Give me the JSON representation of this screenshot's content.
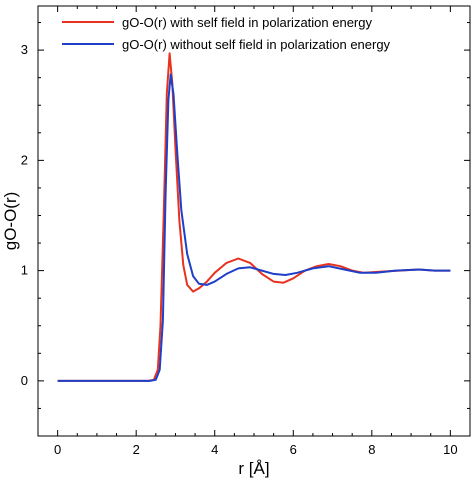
{
  "chart_data": {
    "type": "line",
    "xlabel": "r [Å]",
    "ylabel": "gO-O(r)",
    "xlim": [
      -0.5,
      10.5
    ],
    "ylim": [
      -0.5,
      3.4
    ],
    "xticks": [
      0,
      2,
      4,
      6,
      8,
      10
    ],
    "yticks": [
      0,
      1,
      2,
      3
    ],
    "grid": false,
    "legend_position": "top-right",
    "series": [
      {
        "name": "gO-O(r) with self field in polarization energy",
        "color": "#e8321e",
        "points": [
          [
            0,
            0
          ],
          [
            2.3,
            0
          ],
          [
            2.45,
            0.01
          ],
          [
            2.55,
            0.1
          ],
          [
            2.62,
            0.5
          ],
          [
            2.7,
            1.5
          ],
          [
            2.78,
            2.6
          ],
          [
            2.85,
            2.97
          ],
          [
            2.92,
            2.7
          ],
          [
            3.0,
            2.1
          ],
          [
            3.1,
            1.45
          ],
          [
            3.2,
            1.05
          ],
          [
            3.3,
            0.87
          ],
          [
            3.45,
            0.81
          ],
          [
            3.6,
            0.84
          ],
          [
            3.8,
            0.9
          ],
          [
            4.0,
            0.98
          ],
          [
            4.3,
            1.07
          ],
          [
            4.6,
            1.11
          ],
          [
            4.9,
            1.07
          ],
          [
            5.2,
            0.97
          ],
          [
            5.5,
            0.9
          ],
          [
            5.75,
            0.89
          ],
          [
            6.0,
            0.93
          ],
          [
            6.3,
            1.0
          ],
          [
            6.6,
            1.04
          ],
          [
            6.9,
            1.06
          ],
          [
            7.2,
            1.04
          ],
          [
            7.5,
            1.0
          ],
          [
            7.8,
            0.98
          ],
          [
            8.2,
            0.99
          ],
          [
            8.7,
            1.0
          ],
          [
            9.2,
            1.01
          ],
          [
            9.6,
            1.0
          ],
          [
            10.0,
            1.0
          ]
        ]
      },
      {
        "name": "gO-O(r) without self field in polarization energy",
        "color": "#1f3fc9",
        "points": [
          [
            0,
            0
          ],
          [
            2.35,
            0
          ],
          [
            2.5,
            0.01
          ],
          [
            2.6,
            0.1
          ],
          [
            2.68,
            0.55
          ],
          [
            2.75,
            1.7
          ],
          [
            2.82,
            2.55
          ],
          [
            2.88,
            2.78
          ],
          [
            2.95,
            2.6
          ],
          [
            3.05,
            2.05
          ],
          [
            3.15,
            1.55
          ],
          [
            3.3,
            1.15
          ],
          [
            3.45,
            0.95
          ],
          [
            3.6,
            0.88
          ],
          [
            3.8,
            0.87
          ],
          [
            4.0,
            0.9
          ],
          [
            4.3,
            0.97
          ],
          [
            4.6,
            1.02
          ],
          [
            4.9,
            1.03
          ],
          [
            5.2,
            1.0
          ],
          [
            5.5,
            0.97
          ],
          [
            5.8,
            0.96
          ],
          [
            6.1,
            0.98
          ],
          [
            6.5,
            1.02
          ],
          [
            6.9,
            1.04
          ],
          [
            7.3,
            1.01
          ],
          [
            7.7,
            0.98
          ],
          [
            8.1,
            0.98
          ],
          [
            8.6,
            1.0
          ],
          [
            9.2,
            1.01
          ],
          [
            9.6,
            1.0
          ],
          [
            10.0,
            1.0
          ]
        ]
      }
    ]
  }
}
